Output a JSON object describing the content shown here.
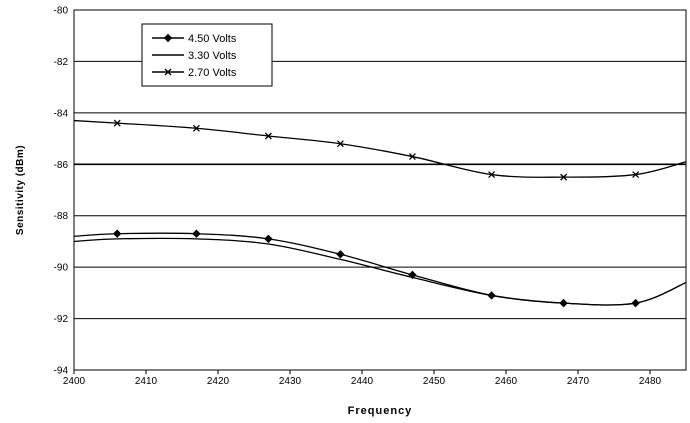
{
  "chart_data": {
    "type": "line",
    "title": "",
    "xlabel": "Frequency",
    "ylabel": "Sensitivity (dBm)",
    "xlim": [
      2400,
      2485
    ],
    "ylim": [
      -94,
      -80
    ],
    "xticks": [
      2400,
      2410,
      2420,
      2430,
      2440,
      2450,
      2460,
      2470,
      2480
    ],
    "yticks": [
      -80,
      -82,
      -84,
      -86,
      -88,
      -90,
      -92,
      -94
    ],
    "grid": "horizontal",
    "legend_position": "top-left",
    "series": [
      {
        "name": "4.50 Volts",
        "marker": "diamond",
        "color": "#000000",
        "x": [
          2400,
          2406,
          2417,
          2427,
          2437,
          2447,
          2458,
          2468,
          2478,
          2485
        ],
        "y": [
          -88.8,
          -88.7,
          -88.7,
          -88.9,
          -89.5,
          -90.3,
          -91.1,
          -91.4,
          -91.4,
          -90.6
        ]
      },
      {
        "name": "3.30 Volts",
        "marker": "none",
        "color": "#000000",
        "x": [
          2400,
          2406,
          2417,
          2427,
          2437,
          2447,
          2458,
          2468,
          2478,
          2485
        ],
        "y": [
          -89.0,
          -88.9,
          -88.9,
          -89.1,
          -89.7,
          -90.4,
          -91.1,
          -91.4,
          -91.4,
          -90.6
        ]
      },
      {
        "name": "2.70 Volts",
        "marker": "x",
        "color": "#000000",
        "x": [
          2400,
          2406,
          2417,
          2427,
          2437,
          2447,
          2458,
          2468,
          2478,
          2485
        ],
        "y": [
          -84.3,
          -84.4,
          -84.6,
          -84.9,
          -85.2,
          -85.7,
          -86.4,
          -86.5,
          -86.4,
          -85.9
        ]
      }
    ]
  }
}
